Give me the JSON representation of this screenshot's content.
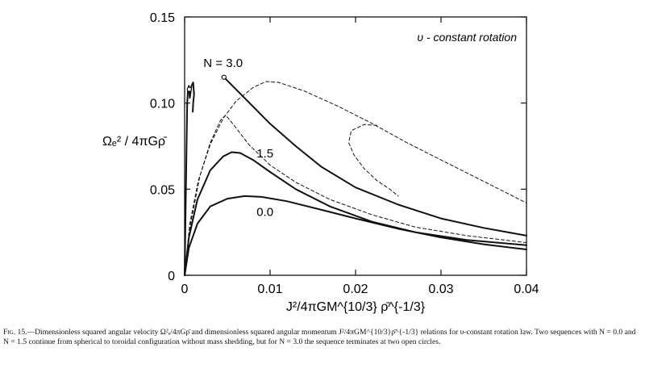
{
  "caption": {
    "lead": "Fig. 15.",
    "text": "—Dimensionless squared angular velocity Ω²ₑ/4πGρ̄ and dimensionless squared angular momentum J²/4πGM^{10/3}ρ̄^{-1/3} relations for υ-constant rotation law. Two sequences with N = 0.0 and N = 1.5 continue from spherical to toroidal configuration without mass shedding, but for N = 3.0 the sequence terminates at two open circles."
  },
  "chart_data": {
    "type": "line",
    "title": "",
    "annotation": "υ - constant rotation",
    "xlabel": "J²/4πGM^{10/3} ρ̄^{-1/3}",
    "ylabel": "Ωₑ² / 4πGρ̄",
    "xlim": [
      0,
      0.04
    ],
    "ylim": [
      0,
      0.15
    ],
    "x_ticks": [
      "0",
      "0.01",
      "0.02",
      "0.03",
      "0.04"
    ],
    "y_ticks": [
      "0",
      "0.05",
      "0.10",
      "0.15"
    ],
    "grid": false,
    "legend": "none",
    "series": [
      {
        "name": "0.0",
        "style": "solid",
        "points": [
          [
            0,
            0
          ],
          [
            0.0005,
            0.016
          ],
          [
            0.0015,
            0.03
          ],
          [
            0.003,
            0.04
          ],
          [
            0.005,
            0.0445
          ],
          [
            0.007,
            0.046
          ],
          [
            0.009,
            0.0455
          ],
          [
            0.012,
            0.043
          ],
          [
            0.016,
            0.038
          ],
          [
            0.02,
            0.033
          ],
          [
            0.025,
            0.027
          ],
          [
            0.03,
            0.022
          ],
          [
            0.035,
            0.018
          ],
          [
            0.04,
            0.015
          ]
        ]
      },
      {
        "name": "1.5",
        "style": "solid",
        "points": [
          [
            0,
            0
          ],
          [
            0.0005,
            0.022
          ],
          [
            0.0015,
            0.044
          ],
          [
            0.003,
            0.061
          ],
          [
            0.0045,
            0.069
          ],
          [
            0.0055,
            0.0715
          ],
          [
            0.0065,
            0.071
          ],
          [
            0.008,
            0.067
          ],
          [
            0.01,
            0.06
          ],
          [
            0.013,
            0.05
          ],
          [
            0.017,
            0.04
          ],
          [
            0.022,
            0.031
          ],
          [
            0.027,
            0.025
          ],
          [
            0.033,
            0.0205
          ],
          [
            0.04,
            0.0175
          ]
        ]
      },
      {
        "name": "3.0",
        "style": "solid",
        "points": [
          [
            0.0046,
            0.115
          ],
          [
            0.006,
            0.108
          ],
          [
            0.008,
            0.098
          ],
          [
            0.01,
            0.088
          ],
          [
            0.013,
            0.075
          ],
          [
            0.016,
            0.063
          ],
          [
            0.02,
            0.051
          ],
          [
            0.025,
            0.041
          ],
          [
            0.03,
            0.033
          ],
          [
            0.035,
            0.0275
          ],
          [
            0.04,
            0.023
          ]
        ]
      },
      {
        "name": "",
        "style": "dashed",
        "points": [
          [
            0,
            0
          ],
          [
            0.0006,
            0.03
          ],
          [
            0.0016,
            0.055
          ],
          [
            0.003,
            0.076
          ],
          [
            0.0045,
            0.091
          ],
          [
            0.006,
            0.101
          ],
          [
            0.008,
            0.109
          ],
          [
            0.0095,
            0.1125
          ],
          [
            0.011,
            0.112
          ],
          [
            0.014,
            0.107
          ],
          [
            0.018,
            0.098
          ],
          [
            0.022,
            0.088
          ],
          [
            0.026,
            0.077
          ],
          [
            0.03,
            0.067
          ],
          [
            0.034,
            0.057
          ],
          [
            0.038,
            0.047
          ],
          [
            0.04,
            0.042
          ]
        ]
      },
      {
        "name": "",
        "style": "dashed",
        "points": [
          [
            0,
            0
          ],
          [
            0.0007,
            0.03
          ],
          [
            0.0018,
            0.058
          ],
          [
            0.003,
            0.077
          ],
          [
            0.0042,
            0.09
          ],
          [
            0.0048,
            0.093
          ],
          [
            0.0058,
            0.087
          ],
          [
            0.0075,
            0.076
          ],
          [
            0.01,
            0.064
          ],
          [
            0.013,
            0.054
          ],
          [
            0.017,
            0.044
          ],
          [
            0.022,
            0.035
          ],
          [
            0.027,
            0.028
          ],
          [
            0.033,
            0.023
          ],
          [
            0.04,
            0.019
          ]
        ]
      },
      {
        "name": "",
        "style": "dashed",
        "points": [
          [
            0.0225,
            0.087
          ],
          [
            0.021,
            0.0875
          ],
          [
            0.0195,
            0.084
          ],
          [
            0.0192,
            0.077
          ],
          [
            0.0198,
            0.07
          ],
          [
            0.021,
            0.062
          ],
          [
            0.0225,
            0.055
          ],
          [
            0.024,
            0.05
          ],
          [
            0.025,
            0.046
          ]
        ]
      },
      {
        "name": "",
        "style": "solid",
        "points": [
          [
            0.0,
            0.0
          ],
          [
            0.00015,
            0.05
          ],
          [
            0.0003,
            0.1
          ],
          [
            0.0004,
            0.108
          ],
          [
            0.0005,
            0.11
          ],
          [
            0.0006,
            0.103
          ],
          [
            0.0008,
            0.11
          ],
          [
            0.001,
            0.112
          ],
          [
            0.0011,
            0.105
          ],
          [
            0.001,
            0.1
          ],
          [
            0.00095,
            0.095
          ]
        ]
      }
    ],
    "series_labels": [
      {
        "text": "N = 3.0",
        "x": 0.0045,
        "y": 0.121
      },
      {
        "text": "1.5",
        "x": 0.0094,
        "y": 0.0684
      },
      {
        "text": "0.0",
        "x": 0.0094,
        "y": 0.0344
      }
    ],
    "open_circles": [
      [
        0.0046,
        0.115
      ],
      [
        0.00055,
        0.108
      ]
    ]
  }
}
